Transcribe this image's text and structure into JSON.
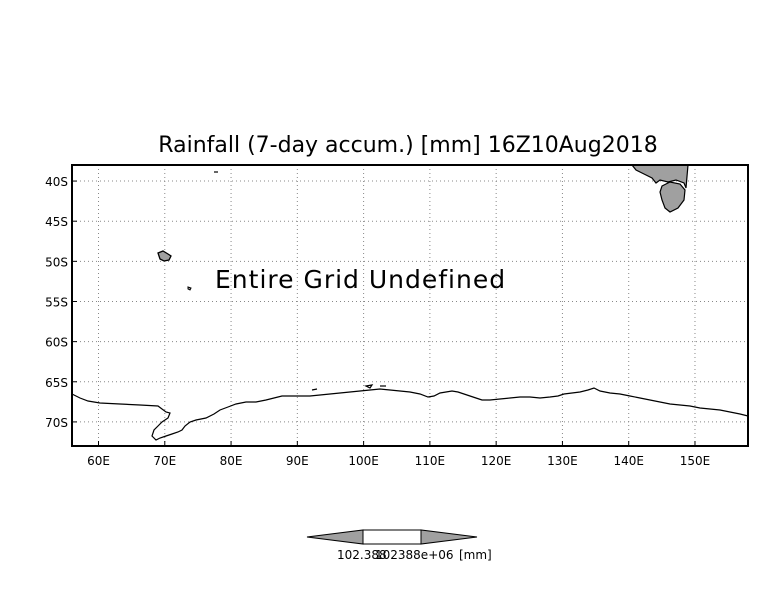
{
  "title": "Rainfall (7-day accum.) [mm] 16Z10Aug2018",
  "message": "Entire Grid Undefined",
  "map": {
    "lon_range": [
      56,
      158
    ],
    "lat_range": [
      -73,
      -38
    ],
    "lon_ticks": [
      {
        "value": 60,
        "label": "60E"
      },
      {
        "value": 70,
        "label": "70E"
      },
      {
        "value": 80,
        "label": "80E"
      },
      {
        "value": 90,
        "label": "90E"
      },
      {
        "value": 100,
        "label": "100E"
      },
      {
        "value": 110,
        "label": "110E"
      },
      {
        "value": 120,
        "label": "120E"
      },
      {
        "value": 130,
        "label": "130E"
      },
      {
        "value": 140,
        "label": "140E"
      },
      {
        "value": 150,
        "label": "150E"
      }
    ],
    "lat_ticks": [
      {
        "value": -40,
        "label": "40S"
      },
      {
        "value": -45,
        "label": "45S"
      },
      {
        "value": -50,
        "label": "50S"
      },
      {
        "value": -55,
        "label": "55S"
      },
      {
        "value": -60,
        "label": "60S"
      },
      {
        "value": -65,
        "label": "65S"
      },
      {
        "value": -70,
        "label": "70S"
      }
    ],
    "grid": true,
    "land_color": "#a0a0a0",
    "line_color": "#000000"
  },
  "colorbar": {
    "left_label": "102.388",
    "right_label": "102388e+06",
    "unit": "[mm]",
    "arrow_color": "#a0a0a0",
    "box_color": "#ffffff"
  }
}
